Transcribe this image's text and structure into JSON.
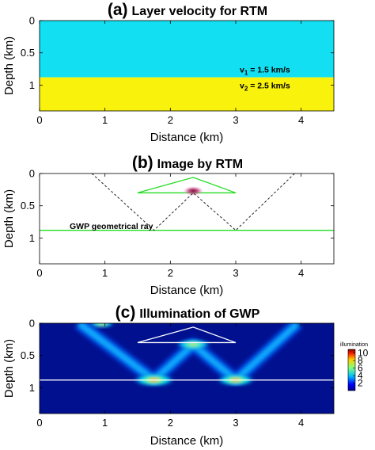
{
  "chart_data": [
    {
      "type": "heatmap",
      "panel_letter": "(a)",
      "title": "Layer velocity for RTM",
      "xlabel": "Distance (km)",
      "ylabel": "Depth (km)",
      "xlim": [
        0,
        4.5
      ],
      "ylim": [
        0,
        1.4
      ],
      "x_ticks": [
        0,
        1,
        2,
        3,
        4
      ],
      "y_ticks": [
        0,
        0.5,
        1
      ],
      "layers": [
        {
          "name": "v1",
          "label_main": "v",
          "label_sub": "1",
          "label_rest": " = 1.5 km/s",
          "velocity_km_s": 1.5,
          "depth_top": 0,
          "depth_bottom": 0.88,
          "color": "#12e0f2"
        },
        {
          "name": "v2",
          "label_main": "v",
          "label_sub": "2",
          "label_rest": " = 2.5 km/s",
          "velocity_km_s": 2.5,
          "depth_top": 0.88,
          "depth_bottom": 1.4,
          "color": "#f9f20d"
        }
      ]
    },
    {
      "type": "line",
      "panel_letter": "(b)",
      "title": "Image by RTM",
      "xlabel": "Distance (km)",
      "ylabel": "Depth (km)",
      "xlim": [
        0,
        4.5
      ],
      "ylim": [
        0,
        1.4
      ],
      "x_ticks": [
        0,
        1,
        2,
        3,
        4
      ],
      "y_ticks": [
        0,
        0.5,
        1
      ],
      "annotation": "GWP geometrical ray",
      "ray_path": [
        [
          0.8,
          0
        ],
        [
          1.75,
          0.88
        ],
        [
          2.35,
          0.3
        ],
        [
          3.0,
          0.88
        ],
        [
          3.9,
          0
        ]
      ],
      "triangle": [
        [
          1.5,
          0.3
        ],
        [
          2.35,
          0.06
        ],
        [
          3.0,
          0.3
        ]
      ],
      "interface_depth": 0.88,
      "image_spot": {
        "x": 2.35,
        "y": 0.27
      },
      "colors": {
        "ray": "#222222",
        "triangle": "#22dd22",
        "interface": "#22dd22",
        "spot": "#b0307a"
      }
    },
    {
      "type": "heatmap",
      "panel_letter": "(c)",
      "title": "Illumination of GWP",
      "xlabel": "Distance (km)",
      "ylabel": "Depth (km)",
      "xlim": [
        0,
        4.5
      ],
      "ylim": [
        0,
        1.4
      ],
      "x_ticks": [
        0,
        1,
        2,
        3,
        4
      ],
      "y_ticks": [
        0,
        0.5,
        1
      ],
      "colorbar": {
        "label": "illumination",
        "ticks": [
          2,
          4,
          6,
          8,
          10
        ],
        "range": [
          0,
          11
        ]
      },
      "triangle": [
        [
          1.5,
          0.3
        ],
        [
          2.35,
          0.06
        ],
        [
          3.0,
          0.3
        ]
      ],
      "interface_depth": 0.88,
      "ray_path": [
        [
          0.6,
          0
        ],
        [
          1.75,
          0.88
        ],
        [
          2.35,
          0.33
        ],
        [
          3.0,
          0.88
        ],
        [
          3.95,
          0
        ]
      ],
      "hotspots": [
        {
          "x": 1.75,
          "y": 0.88,
          "value": 10
        },
        {
          "x": 2.35,
          "y": 0.33,
          "value": 8
        },
        {
          "x": 3.0,
          "y": 0.88,
          "value": 9
        },
        {
          "x": 0.95,
          "y": 0.01,
          "value": 5
        }
      ],
      "colors": {
        "background": "#00108f",
        "triangle": "#ffffff",
        "interface": "#ffffff"
      }
    }
  ]
}
